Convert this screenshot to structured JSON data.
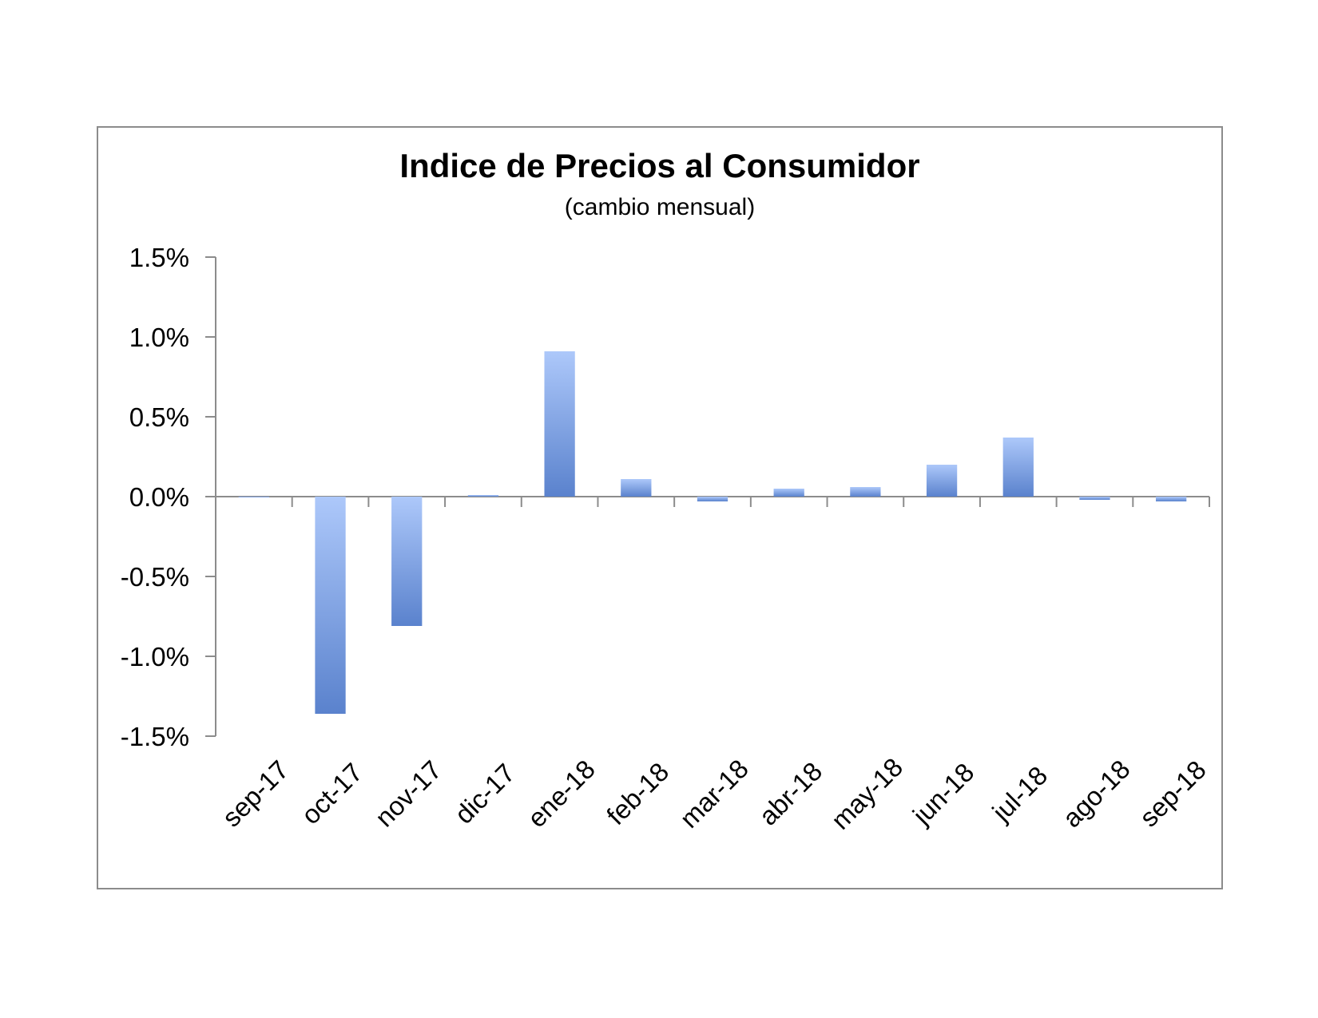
{
  "chart_data": {
    "type": "bar",
    "title": "Indice de Precios al Consumidor",
    "subtitle": "(cambio mensual)",
    "xlabel": "",
    "ylabel": "",
    "categories": [
      "sep-17",
      "oct-17",
      "nov-17",
      "dic-17",
      "ene-18",
      "feb-18",
      "mar-18",
      "abr-18",
      "may-18",
      "jun-18",
      "jul-18",
      "ago-18",
      "sep-18"
    ],
    "values": [
      0.0,
      -1.36,
      -0.81,
      0.01,
      0.91,
      0.11,
      -0.03,
      0.05,
      0.06,
      0.2,
      0.37,
      -0.02,
      -0.03
    ],
    "value_unit": "%",
    "ylim": [
      -1.5,
      1.5
    ],
    "yticks": [
      1.5,
      1.0,
      0.5,
      0.0,
      -0.5,
      -1.0,
      -1.5
    ],
    "ytick_labels": [
      "1.5%",
      "1.0%",
      "0.5%",
      "0.0%",
      "-0.5%",
      "-1.0%",
      "-1.5%"
    ],
    "grid": false,
    "legend": "none",
    "colors": {
      "bar_light": "#adc8fa",
      "bar_dark": "#5a82cd",
      "axis": "#8c8c8c",
      "frame": "#8c8c8c"
    }
  }
}
